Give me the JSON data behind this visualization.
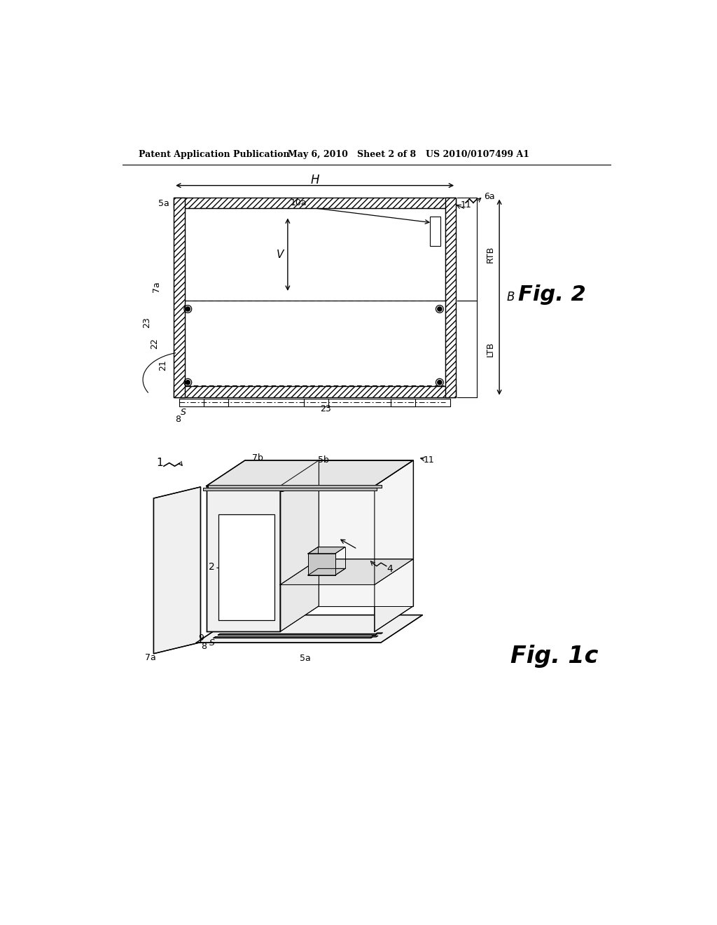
{
  "bg_color": "#ffffff",
  "header_left": "Patent Application Publication",
  "header_mid": "May 6, 2010   Sheet 2 of 8",
  "header_right": "US 2010/0107499 A1",
  "fig2_label": "Fig. 2",
  "fig1c_label": "Fig. 1c"
}
